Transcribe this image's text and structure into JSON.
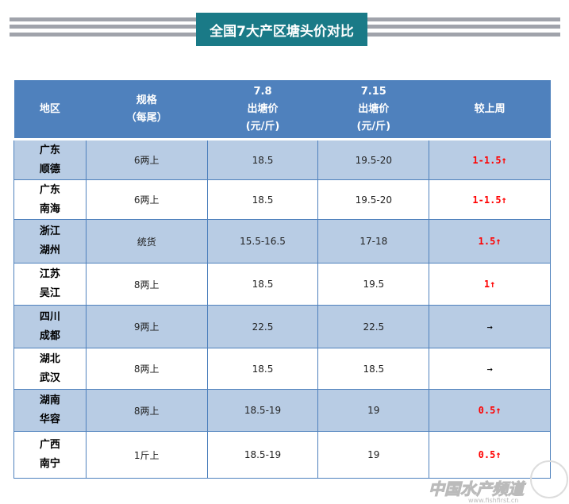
{
  "title": "全国7大产区塘头价对比",
  "headers": {
    "region": "地区",
    "spec": [
      "规格",
      "（每尾）"
    ],
    "d1": [
      "7.8",
      "出塘价",
      "(元/斤)"
    ],
    "d2": [
      "7.15",
      "出塘价",
      "(元/斤)"
    ],
    "change": "较上周"
  },
  "rows": [
    {
      "p": "广东",
      "c": "顺德",
      "spec": "6两上",
      "d1": "18.5",
      "d2": "19.5-20",
      "chg": "1-1.5↑"
    },
    {
      "p": "广东",
      "c": "南海",
      "spec": "6两上",
      "d1": "18.5",
      "d2": "19.5-20",
      "chg": "1-1.5↑"
    },
    {
      "p": "浙江",
      "c": "湖州",
      "spec": "统货",
      "d1": "15.5-16.5",
      "d2": "17-18",
      "chg": "1.5↑"
    },
    {
      "p": "江苏",
      "c": "吴江",
      "spec": "8两上",
      "d1": "18.5",
      "d2": "19.5",
      "chg": "1↑"
    },
    {
      "p": "四川",
      "c": "成都",
      "spec": "9两上",
      "d1": "22.5",
      "d2": "22.5",
      "chg": "→"
    },
    {
      "p": "湖北",
      "c": "武汉",
      "spec": "8两上",
      "d1": "18.5",
      "d2": "18.5",
      "chg": "→"
    },
    {
      "p": "湖南",
      "c": "华容",
      "spec": "8两上",
      "d1": "18.5-19",
      "d2": "19",
      "chg": "0.5↑"
    },
    {
      "p": "广西",
      "c": "南宁",
      "spec": "1斤上",
      "d1": "18.5-19",
      "d2": "19",
      "chg": "0.5↑"
    }
  ],
  "watermark": {
    "text": "中国水产频道",
    "url": "www.fishfirst.cn"
  },
  "colors": {
    "header": "#4f81bd",
    "shade": "#b8cce4",
    "banner": "#1a7a87",
    "up": "#ff0000"
  }
}
